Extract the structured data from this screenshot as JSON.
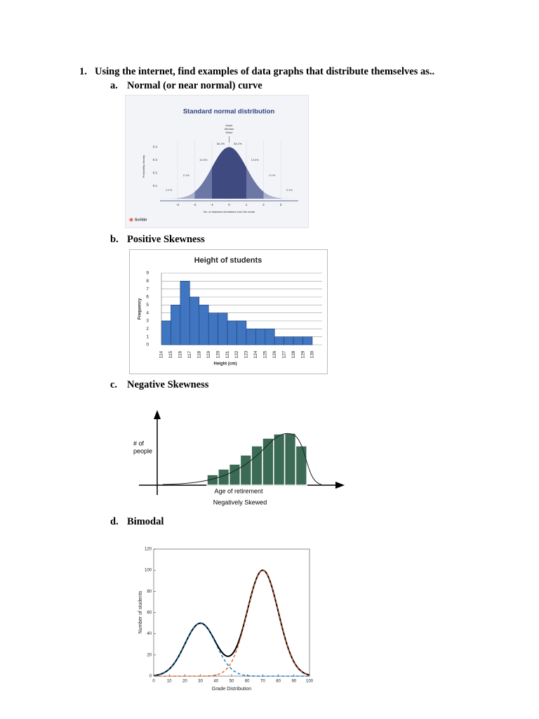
{
  "question": {
    "number": "1.",
    "text": "Using the internet, find examples of data graphs that distribute themselves as.."
  },
  "items": [
    {
      "letter": "a.",
      "label": "Normal (or near normal) curve",
      "chart_data": {
        "type": "normal",
        "title": "Standard normal distribution",
        "annotation": [
          "Mode",
          "Median",
          "Mean"
        ],
        "mean": 0,
        "sd": 1,
        "xlim": [
          -4,
          4
        ],
        "xticks": [
          -3,
          -2,
          -1,
          0,
          1,
          2,
          3
        ],
        "ylim": [
          0,
          0.4
        ],
        "yticks": [
          0.1,
          0.2,
          0.3,
          0.4
        ],
        "region_edges": [
          -4,
          -3,
          -2,
          -1,
          0,
          1,
          2,
          3,
          4
        ],
        "region_values": [
          0.1,
          2.1,
          13.6,
          34.1,
          34.1,
          13.6,
          2.1,
          0.1
        ],
        "region_labels": [
          "0.1%",
          "2.1%",
          "13.6%",
          "34.1%",
          "34.1%",
          "13.6%",
          "2.1%",
          "0.1%"
        ],
        "region_colors": [
          "#d3d6e6",
          "#aab0cd",
          "#6d77a5",
          "#3f4a80",
          "#3f4a80",
          "#6d77a5",
          "#aab0cd",
          "#d3d6e6"
        ],
        "xlabel": "No. of standard deviations from the mean",
        "ylabel": "Probability density",
        "source": "Scribbr"
      }
    },
    {
      "letter": "b.",
      "label": "Positive Skewness",
      "chart_data": {
        "type": "histogram",
        "title": "Height of students",
        "bins": [
          114,
          115,
          116,
          117,
          118,
          119,
          120,
          121,
          122,
          123,
          124,
          125,
          126,
          127,
          128,
          129,
          130
        ],
        "values": [
          3,
          5,
          8,
          6,
          5,
          4,
          4,
          3,
          3,
          2,
          2,
          2,
          1,
          1,
          1,
          1
        ],
        "color": "#3f75c1",
        "ylim": [
          0,
          9
        ],
        "yticks": [
          0,
          1,
          2,
          3,
          4,
          5,
          6,
          7,
          8,
          9
        ],
        "grid": true,
        "xlabel": "Height (cm)",
        "ylabel": "Frequency"
      }
    },
    {
      "letter": "c.",
      "label": "Negative Skewness",
      "chart_data": {
        "type": "bar",
        "values": [
          15,
          23,
          30,
          43,
          56,
          67,
          73,
          74,
          56
        ],
        "color": "#3b6b55",
        "ylim": [
          0,
          100
        ],
        "ylabel": [
          "# of",
          "people"
        ],
        "xlabel": "Age of retirement",
        "caption": "Negatively Skewed"
      }
    },
    {
      "letter": "d.",
      "label": "Bimodal",
      "chart_data": {
        "type": "mixture",
        "components": [
          {
            "mean": 30,
            "sd": 10,
            "peak": 50,
            "color": "#0072bd"
          },
          {
            "mean": 70,
            "sd": 10,
            "peak": 100,
            "color": "#d95319"
          }
        ],
        "total_color": "#000000",
        "xlim": [
          0,
          100
        ],
        "xticks": [
          0,
          10,
          20,
          30,
          40,
          50,
          60,
          70,
          80,
          90,
          100
        ],
        "ylim": [
          0,
          120
        ],
        "yticks": [
          0,
          20,
          40,
          60,
          80,
          100,
          120
        ],
        "xlabel": "Grade Distribution",
        "ylabel": "Number of students"
      }
    }
  ]
}
